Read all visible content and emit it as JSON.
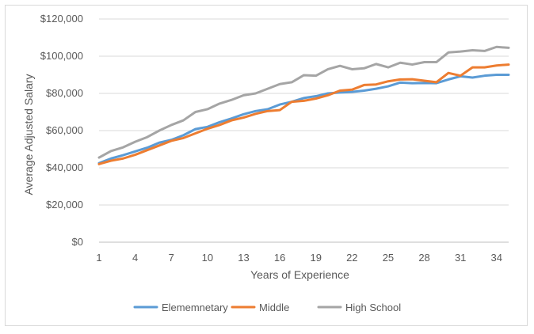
{
  "chart_data": {
    "type": "line",
    "title": "",
    "xlabel": "Years of Experience",
    "ylabel": "Average Adjusted Salary",
    "x": [
      1,
      2,
      3,
      4,
      5,
      6,
      7,
      8,
      9,
      10,
      11,
      12,
      13,
      14,
      15,
      16,
      17,
      18,
      19,
      20,
      21,
      22,
      23,
      24,
      25,
      26,
      27,
      28,
      29,
      30,
      31,
      32,
      33,
      34,
      35
    ],
    "x_tick_labels": [
      "1",
      "4",
      "7",
      "10",
      "13",
      "16",
      "19",
      "22",
      "25",
      "28",
      "31",
      "34"
    ],
    "x_tick_values": [
      1,
      4,
      7,
      10,
      13,
      16,
      19,
      22,
      25,
      28,
      31,
      34
    ],
    "xlim": [
      1,
      35
    ],
    "ylim": [
      0,
      120000
    ],
    "y_ticks": [
      0,
      20000,
      40000,
      60000,
      80000,
      100000,
      120000
    ],
    "y_tick_labels": [
      "$0",
      "$20,000",
      "$40,000",
      "$60,000",
      "$80,000",
      "$100,000",
      "$120,000"
    ],
    "grid": "horizontal",
    "legend_position": "bottom",
    "series": [
      {
        "name": "Elememnetary",
        "color": "#5b9bd5",
        "values": [
          42500,
          45000,
          46800,
          48800,
          50800,
          53500,
          55000,
          57500,
          60800,
          62000,
          64500,
          66500,
          68800,
          70500,
          71500,
          74000,
          75500,
          77500,
          78500,
          80000,
          80500,
          80800,
          81500,
          82500,
          83800,
          85800,
          85500,
          85600,
          85500,
          87500,
          89200,
          88500,
          89500,
          90000,
          90000
        ]
      },
      {
        "name": "Middle",
        "color": "#ed7d31",
        "values": [
          42000,
          43800,
          45000,
          47000,
          49500,
          52000,
          54500,
          56000,
          58500,
          61000,
          63000,
          65500,
          67000,
          69000,
          70500,
          71000,
          75500,
          76000,
          77200,
          79000,
          81500,
          82000,
          84500,
          84800,
          86500,
          87500,
          87600,
          86800,
          86000,
          91000,
          89500,
          94000,
          94000,
          95000,
          95500
        ]
      },
      {
        "name": "High School",
        "color": "#a5a5a5",
        "values": [
          45500,
          49000,
          51000,
          54000,
          56500,
          60000,
          63000,
          65500,
          70000,
          71500,
          74500,
          76500,
          79000,
          80000,
          82500,
          85000,
          86000,
          89800,
          89500,
          93000,
          94800,
          93000,
          93500,
          95800,
          94000,
          96500,
          95500,
          96800,
          96800,
          102000,
          102500,
          103200,
          102800,
          105000,
          104500
        ]
      }
    ]
  }
}
